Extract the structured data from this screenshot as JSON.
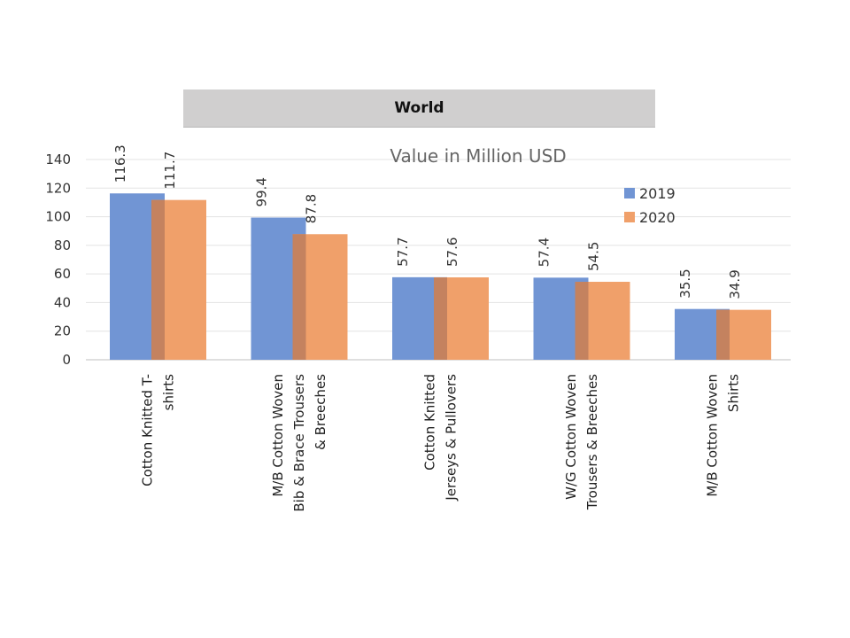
{
  "chart_data": {
    "type": "bar",
    "title": "World",
    "subtitle": "Value in Million USD",
    "categories": [
      [
        "Cotton Knitted  T-",
        "shirts"
      ],
      [
        "M/B Cotton Woven",
        "Bib & Brace Trousers",
        "& Breeches"
      ],
      [
        "Cotton Knitted",
        "Jerseys & Pullovers"
      ],
      [
        "W/G Cotton Woven",
        "Trousers  & Breeches"
      ],
      [
        "M/B Cotton Woven",
        "Shirts"
      ]
    ],
    "series": [
      {
        "name": "2019",
        "values": [
          116.3,
          99.4,
          57.7,
          57.4,
          35.5
        ],
        "labels": [
          "116.3",
          "99.4",
          "57.7",
          "57.4",
          "35.5"
        ],
        "color": "#7195d4"
      },
      {
        "name": "2020",
        "values": [
          111.7,
          87.8,
          57.6,
          54.5,
          34.9
        ],
        "labels": [
          "111.7",
          "87.8",
          "57.6",
          "54.5",
          "34.9"
        ],
        "color": "#f0a06a"
      }
    ],
    "yticks": [
      "0",
      "20",
      "40",
      "60",
      "80",
      "100",
      "120",
      "140"
    ],
    "ylim": [
      0,
      140
    ],
    "grid": true,
    "legend": "top-right",
    "overlap_color": "#c4825f"
  }
}
